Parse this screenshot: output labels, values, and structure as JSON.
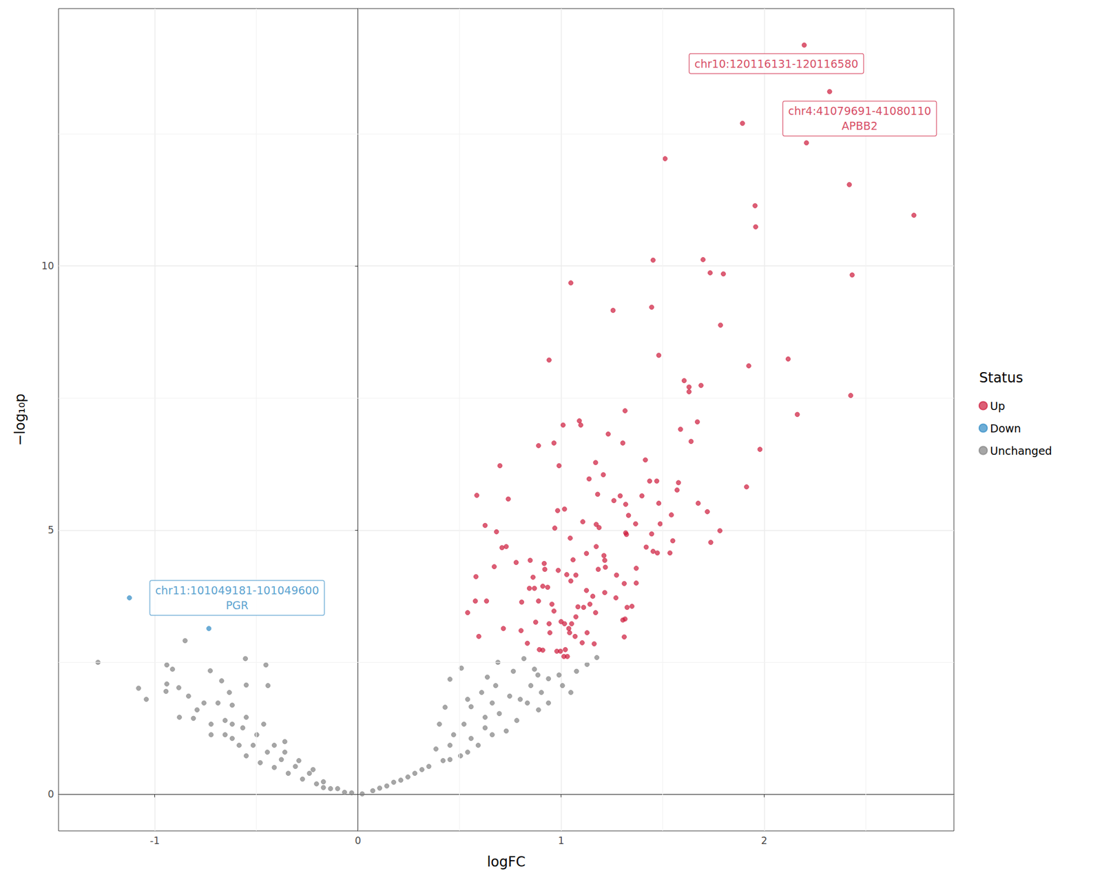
{
  "chart_data": {
    "type": "scatter",
    "x_label": "logFC",
    "y_label": "−log₁₀p",
    "xlim": [
      -1.474,
      2.934
    ],
    "ylim": [
      -0.69,
      14.87
    ],
    "xticks": [
      -1,
      0,
      1,
      2
    ],
    "yticks": [
      0,
      5,
      10
    ],
    "grid": true,
    "legend": "right",
    "legend_title": "Status",
    "series": [
      {
        "name": "Up",
        "color": "#cd1a3b",
        "points": [
          [
            2.197,
            14.18
          ],
          [
            2.322,
            13.3
          ],
          [
            1.893,
            12.7
          ],
          [
            2.208,
            12.33
          ],
          [
            1.512,
            12.03
          ],
          [
            2.419,
            11.54
          ],
          [
            1.955,
            11.14
          ],
          [
            2.737,
            10.96
          ],
          [
            1.958,
            10.74
          ],
          [
            1.453,
            10.11
          ],
          [
            1.699,
            10.12
          ],
          [
            1.734,
            9.87
          ],
          [
            1.799,
            9.85
          ],
          [
            2.433,
            9.83
          ],
          [
            1.048,
            9.68
          ],
          [
            1.256,
            9.16
          ],
          [
            1.446,
            9.22
          ],
          [
            1.785,
            8.88
          ],
          [
            1.481,
            8.31
          ],
          [
            0.941,
            8.22
          ],
          [
            1.924,
            8.11
          ],
          [
            2.118,
            8.24
          ],
          [
            1.606,
            7.83
          ],
          [
            1.63,
            7.71
          ],
          [
            1.63,
            7.62
          ],
          [
            1.689,
            7.74
          ],
          [
            2.426,
            7.55
          ],
          [
            1.315,
            7.26
          ],
          [
            1.09,
            7.07
          ],
          [
            1.097,
            6.99
          ],
          [
            1.01,
            6.99
          ],
          [
            1.671,
            7.05
          ],
          [
            2.163,
            7.19
          ],
          [
            1.588,
            6.91
          ],
          [
            1.232,
            6.82
          ],
          [
            0.965,
            6.65
          ],
          [
            0.889,
            6.6
          ],
          [
            1.304,
            6.65
          ],
          [
            1.64,
            6.68
          ],
          [
            1.979,
            6.53
          ],
          [
            1.415,
            6.33
          ],
          [
            0.699,
            6.22
          ],
          [
            0.99,
            6.22
          ],
          [
            1.17,
            6.28
          ],
          [
            1.208,
            6.05
          ],
          [
            1.138,
            5.97
          ],
          [
            1.436,
            5.93
          ],
          [
            1.471,
            5.93
          ],
          [
            1.578,
            5.9
          ],
          [
            1.913,
            5.82
          ],
          [
            1.571,
            5.76
          ],
          [
            0.585,
            5.66
          ],
          [
            1.18,
            5.68
          ],
          [
            1.291,
            5.65
          ],
          [
            0.74,
            5.59
          ],
          [
            1.26,
            5.56
          ],
          [
            1.398,
            5.65
          ],
          [
            1.318,
            5.49
          ],
          [
            1.481,
            5.51
          ],
          [
            1.675,
            5.51
          ],
          [
            1.72,
            5.35
          ],
          [
            0.983,
            5.37
          ],
          [
            1.017,
            5.4
          ],
          [
            1.543,
            5.29
          ],
          [
            1.332,
            5.28
          ],
          [
            1.107,
            5.16
          ],
          [
            1.173,
            5.11
          ],
          [
            1.367,
            5.12
          ],
          [
            1.488,
            5.12
          ],
          [
            1.187,
            5.05
          ],
          [
            0.626,
            5.09
          ],
          [
            0.682,
            4.97
          ],
          [
            0.969,
            5.04
          ],
          [
            1.318,
            4.95
          ],
          [
            1.446,
            4.93
          ],
          [
            1.322,
            4.92
          ],
          [
            1.782,
            4.99
          ],
          [
            1.045,
            4.85
          ],
          [
            1.55,
            4.8
          ],
          [
            1.737,
            4.77
          ],
          [
            1.173,
            4.69
          ],
          [
            1.419,
            4.68
          ],
          [
            1.453,
            4.6
          ],
          [
            1.474,
            4.57
          ],
          [
            1.536,
            4.57
          ],
          [
            0.73,
            4.69
          ],
          [
            0.709,
            4.67
          ],
          [
            1.125,
            4.56
          ],
          [
            1.211,
            4.52
          ],
          [
            1.059,
            4.44
          ],
          [
            1.215,
            4.43
          ],
          [
            0.779,
            4.39
          ],
          [
            0.848,
            4.43
          ],
          [
            0.917,
            4.37
          ],
          [
            0.92,
            4.26
          ],
          [
            0.671,
            4.31
          ],
          [
            0.986,
            4.24
          ],
          [
            1.183,
            4.26
          ],
          [
            1.218,
            4.3
          ],
          [
            1.37,
            4.28
          ],
          [
            1.273,
            4.15
          ],
          [
            1.028,
            4.16
          ],
          [
            1.073,
            4.15
          ],
          [
            0.862,
            4.11
          ],
          [
            0.581,
            4.12
          ],
          [
            1.048,
            4.04
          ],
          [
            1.311,
            3.99
          ],
          [
            1.37,
            4.0
          ],
          [
            0.91,
            3.94
          ],
          [
            0.934,
            3.92
          ],
          [
            0.844,
            3.9
          ],
          [
            0.869,
            3.9
          ],
          [
            1.125,
            3.86
          ],
          [
            1.215,
            3.82
          ],
          [
            1.156,
            3.75
          ],
          [
            1.27,
            3.72
          ],
          [
            0.806,
            3.64
          ],
          [
            0.889,
            3.66
          ],
          [
            0.578,
            3.66
          ],
          [
            0.633,
            3.66
          ],
          [
            0.955,
            3.6
          ],
          [
            1.142,
            3.6
          ],
          [
            1.083,
            3.55
          ],
          [
            1.111,
            3.54
          ],
          [
            1.349,
            3.56
          ],
          [
            1.325,
            3.54
          ],
          [
            0.54,
            3.44
          ],
          [
            0.965,
            3.47
          ],
          [
            1.17,
            3.44
          ],
          [
            1.073,
            3.36
          ],
          [
            1.315,
            3.32
          ],
          [
            1.304,
            3.3
          ],
          [
            0.716,
            3.14
          ],
          [
            0.803,
            3.1
          ],
          [
            0.875,
            3.26
          ],
          [
            1.0,
            3.27
          ],
          [
            1.017,
            3.23
          ],
          [
            1.052,
            3.23
          ],
          [
            0.941,
            3.23
          ],
          [
            1.038,
            3.14
          ],
          [
            1.042,
            3.06
          ],
          [
            0.945,
            3.06
          ],
          [
            1.128,
            3.06
          ],
          [
            1.069,
            2.99
          ],
          [
            0.595,
            2.99
          ],
          [
            1.311,
            2.98
          ],
          [
            0.834,
            2.86
          ],
          [
            1.163,
            2.85
          ],
          [
            1.104,
            2.87
          ],
          [
            0.893,
            2.74
          ],
          [
            0.91,
            2.73
          ],
          [
            0.979,
            2.71
          ],
          [
            1.021,
            2.74
          ],
          [
            1.014,
            2.61
          ],
          [
            1.031,
            2.61
          ],
          [
            0.997,
            2.71
          ]
        ]
      },
      {
        "name": "Down",
        "color": "#2f8ac4",
        "points": [
          [
            -1.125,
            3.72
          ],
          [
            -0.734,
            3.14
          ]
        ]
      },
      {
        "name": "Unchanged",
        "color": "#808080",
        "points": [
          [
            -1.28,
            2.5
          ],
          [
            -0.851,
            2.91
          ],
          [
            -0.941,
            2.45
          ],
          [
            -0.913,
            2.37
          ],
          [
            -0.554,
            2.57
          ],
          [
            -0.453,
            2.45
          ],
          [
            -0.727,
            2.34
          ],
          [
            -1.08,
            2.01
          ],
          [
            -1.042,
            1.8
          ],
          [
            -0.941,
            2.09
          ],
          [
            -0.945,
            1.95
          ],
          [
            -0.882,
            2.02
          ],
          [
            -0.671,
            2.15
          ],
          [
            -0.55,
            2.07
          ],
          [
            -0.443,
            2.06
          ],
          [
            -0.633,
            1.93
          ],
          [
            -0.834,
            1.86
          ],
          [
            -0.758,
            1.73
          ],
          [
            -0.619,
            1.69
          ],
          [
            -0.879,
            1.46
          ],
          [
            -0.81,
            1.44
          ],
          [
            -0.723,
            1.33
          ],
          [
            -0.654,
            1.4
          ],
          [
            -0.55,
            1.46
          ],
          [
            -0.464,
            1.33
          ],
          [
            -0.36,
            1.0
          ],
          [
            -0.723,
            1.13
          ],
          [
            -0.619,
            1.06
          ],
          [
            -0.516,
            0.93
          ],
          [
            -0.446,
            0.8
          ],
          [
            -0.377,
            0.66
          ],
          [
            -0.308,
            0.53
          ],
          [
            -0.239,
            0.4
          ],
          [
            -0.17,
            0.24
          ],
          [
            -0.1,
            0.11
          ],
          [
            -0.031,
            0.03
          ],
          [
            -0.585,
            0.93
          ],
          [
            -0.654,
            1.13
          ],
          [
            -0.55,
            0.73
          ],
          [
            -0.481,
            0.6
          ],
          [
            -0.412,
            0.51
          ],
          [
            -0.343,
            0.4
          ],
          [
            -0.273,
            0.29
          ],
          [
            -0.204,
            0.2
          ],
          [
            -0.135,
            0.11
          ],
          [
            -0.066,
            0.04
          ],
          [
            -0.792,
            1.6
          ],
          [
            -0.689,
            1.73
          ],
          [
            -0.567,
            1.26
          ],
          [
            -0.498,
            1.13
          ],
          [
            -0.412,
            0.93
          ],
          [
            -0.619,
            1.33
          ],
          [
            -0.36,
            0.8
          ],
          [
            -0.291,
            0.64
          ],
          [
            -0.221,
            0.47
          ],
          [
            -0.17,
            0.13
          ],
          [
            0.509,
            2.39
          ],
          [
            0.453,
            2.18
          ],
          [
            0.689,
            2.5
          ],
          [
            0.637,
            2.22
          ],
          [
            0.817,
            2.57
          ],
          [
            0.869,
            2.37
          ],
          [
            0.938,
            2.19
          ],
          [
            1.007,
            2.06
          ],
          [
            1.076,
            2.33
          ],
          [
            1.128,
            2.46
          ],
          [
            1.176,
            2.59
          ],
          [
            1.048,
            1.93
          ],
          [
            0.889,
            1.6
          ],
          [
            0.782,
            1.4
          ],
          [
            0.799,
            1.8
          ],
          [
            0.661,
            1.73
          ],
          [
            0.54,
            1.8
          ],
          [
            0.429,
            1.65
          ],
          [
            0.522,
            1.33
          ],
          [
            0.626,
            1.46
          ],
          [
            0.73,
            1.2
          ],
          [
            0.661,
            1.13
          ],
          [
            0.557,
            1.06
          ],
          [
            0.453,
            0.93
          ],
          [
            0.384,
            0.86
          ],
          [
            0.592,
            0.93
          ],
          [
            0.505,
            0.73
          ],
          [
            0.419,
            0.64
          ],
          [
            0.349,
            0.53
          ],
          [
            0.28,
            0.4
          ],
          [
            0.211,
            0.27
          ],
          [
            0.142,
            0.16
          ],
          [
            0.073,
            0.07
          ],
          [
            0.021,
            0.01
          ],
          [
            0.315,
            0.47
          ],
          [
            0.246,
            0.33
          ],
          [
            0.176,
            0.23
          ],
          [
            0.107,
            0.12
          ],
          [
            0.471,
            1.13
          ],
          [
            0.626,
            1.26
          ],
          [
            0.696,
            1.53
          ],
          [
            0.747,
            1.86
          ],
          [
            0.851,
            2.06
          ],
          [
            0.903,
            1.93
          ],
          [
            0.678,
            2.06
          ],
          [
            0.557,
            1.66
          ],
          [
            0.834,
            1.73
          ],
          [
            0.938,
            1.73
          ],
          [
            0.99,
            2.26
          ],
          [
            0.886,
            2.26
          ],
          [
            0.765,
            2.33
          ],
          [
            0.609,
            1.93
          ],
          [
            0.401,
            1.33
          ],
          [
            0.453,
            0.66
          ],
          [
            0.54,
            0.8
          ]
        ]
      }
    ],
    "annotations": [
      {
        "text": "chr10:120116131-120116580",
        "x": 2.06,
        "y": 13.83,
        "series": "Up"
      },
      {
        "text": "chr4:41079691-41080110\nAPBB2",
        "x": 2.47,
        "y": 12.79,
        "series": "Up"
      },
      {
        "text": "chr11:101049181-101049600\nPGR",
        "x": -0.595,
        "y": 3.72,
        "series": "Down"
      }
    ]
  }
}
